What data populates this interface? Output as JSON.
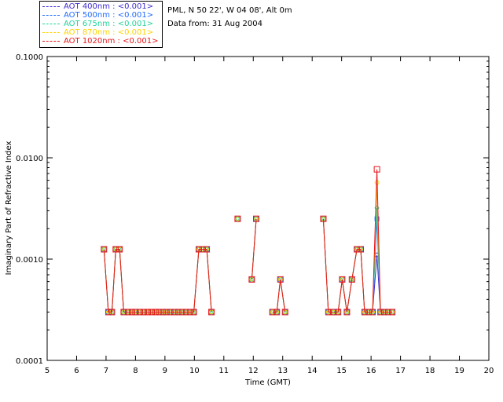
{
  "header": {
    "location": "PML, N 50 22', W 04 08', Alt 0m",
    "data_from": "Data from: 31 Aug 2004"
  },
  "legend": [
    {
      "label": "AOT  400nm : <0.001>",
      "color": "#3b2bd0"
    },
    {
      "label": "AOT  500nm : <0.001>",
      "color": "#1f6bff"
    },
    {
      "label": "AOT  675nm : <0.001>",
      "color": "#21d39a"
    },
    {
      "label": "AOT  870nm : <0.001>",
      "color": "#ffd400"
    },
    {
      "label": "AOT 1020nm : <0.001>",
      "color": "#e8161b"
    }
  ],
  "chart_data": {
    "type": "line",
    "title": "",
    "xlabel": "Time (GMT)",
    "ylabel": "Imaginary Part of Refractive Index",
    "xlim": [
      5,
      20
    ],
    "ylim": [
      0.0001,
      0.1
    ],
    "yscale": "log",
    "xticks": [
      "5",
      "6",
      "7",
      "8",
      "9",
      "10",
      "11",
      "12",
      "13",
      "14",
      "15",
      "16",
      "17",
      "18",
      "19",
      "20"
    ],
    "yticks": [
      "0.0001",
      "0.0010",
      "0.0100",
      "0.1000"
    ],
    "grid": false,
    "legend_position": "top-left-outside",
    "x": [
      6.93,
      7.08,
      7.2,
      7.33,
      7.46,
      7.6,
      7.75,
      7.88,
      8.0,
      8.15,
      8.28,
      8.42,
      8.55,
      8.68,
      8.8,
      8.93,
      9.05,
      9.18,
      9.32,
      9.45,
      9.58,
      9.72,
      9.85,
      9.98,
      10.15,
      10.28,
      10.42,
      10.58,
      11.47,
      11.95,
      12.1,
      12.65,
      12.8,
      12.92,
      13.08,
      14.38,
      14.55,
      14.72,
      14.88,
      15.02,
      15.18,
      15.35,
      15.52,
      15.65,
      15.78,
      15.92,
      16.05,
      16.2,
      16.32,
      16.45,
      16.58,
      16.72
    ],
    "segments": [
      [
        0,
        27
      ],
      [
        28,
        28
      ],
      [
        29,
        30
      ],
      [
        31,
        34
      ],
      [
        35,
        51
      ]
    ],
    "series": [
      {
        "name": "AOT  400nm",
        "values": [
          0.00125,
          0.0003,
          0.0003,
          0.00125,
          0.00125,
          0.0003,
          0.0003,
          0.0003,
          0.0003,
          0.0003,
          0.0003,
          0.0003,
          0.0003,
          0.0003,
          0.0003,
          0.0003,
          0.0003,
          0.0003,
          0.0003,
          0.0003,
          0.0003,
          0.0003,
          0.0003,
          0.0003,
          0.00125,
          0.00125,
          0.00125,
          0.0003,
          0.0025,
          0.00063,
          0.0025,
          0.0003,
          0.0003,
          0.00063,
          0.0003,
          0.0025,
          0.0003,
          0.0003,
          0.0003,
          0.00063,
          0.0003,
          0.00063,
          0.00125,
          0.00125,
          0.0003,
          0.0003,
          0.0003,
          0.0011,
          0.0003,
          0.0003,
          0.0003,
          0.0003
        ]
      },
      {
        "name": "AOT  500nm",
        "values": [
          0.00125,
          0.0003,
          0.0003,
          0.00125,
          0.00125,
          0.0003,
          0.0003,
          0.0003,
          0.0003,
          0.0003,
          0.0003,
          0.0003,
          0.0003,
          0.0003,
          0.0003,
          0.0003,
          0.0003,
          0.0003,
          0.0003,
          0.0003,
          0.0003,
          0.0003,
          0.0003,
          0.0003,
          0.00125,
          0.00125,
          0.00125,
          0.0003,
          0.0025,
          0.00063,
          0.0025,
          0.0003,
          0.0003,
          0.00063,
          0.0003,
          0.0025,
          0.0003,
          0.0003,
          0.0003,
          0.00063,
          0.0003,
          0.00063,
          0.00125,
          0.00125,
          0.0003,
          0.0003,
          0.0003,
          0.0025,
          0.0003,
          0.0003,
          0.0003,
          0.0003
        ]
      },
      {
        "name": "AOT  675nm",
        "values": [
          0.00125,
          0.0003,
          0.0003,
          0.00125,
          0.00125,
          0.0003,
          0.0003,
          0.0003,
          0.0003,
          0.0003,
          0.0003,
          0.0003,
          0.0003,
          0.0003,
          0.0003,
          0.0003,
          0.0003,
          0.0003,
          0.0003,
          0.0003,
          0.0003,
          0.0003,
          0.0003,
          0.0003,
          0.00125,
          0.00125,
          0.00125,
          0.0003,
          0.0025,
          0.00063,
          0.0025,
          0.0003,
          0.0003,
          0.00063,
          0.0003,
          0.0025,
          0.0003,
          0.0003,
          0.0003,
          0.00063,
          0.0003,
          0.00063,
          0.00125,
          0.00125,
          0.0003,
          0.0003,
          0.0003,
          0.0032,
          0.0003,
          0.0003,
          0.0003,
          0.0003
        ]
      },
      {
        "name": "AOT  870nm",
        "values": [
          0.00125,
          0.0003,
          0.0003,
          0.00125,
          0.00125,
          0.0003,
          0.0003,
          0.0003,
          0.0003,
          0.0003,
          0.0003,
          0.0003,
          0.0003,
          0.0003,
          0.0003,
          0.0003,
          0.0003,
          0.0003,
          0.0003,
          0.0003,
          0.0003,
          0.0003,
          0.0003,
          0.0003,
          0.00125,
          0.00125,
          0.00125,
          0.0003,
          0.0025,
          0.00063,
          0.0025,
          0.0003,
          0.0003,
          0.00063,
          0.0003,
          0.0025,
          0.0003,
          0.0003,
          0.0003,
          0.00063,
          0.0003,
          0.00063,
          0.00125,
          0.00125,
          0.0003,
          0.0003,
          0.0003,
          0.0057,
          0.0003,
          0.0003,
          0.0003,
          0.0003
        ]
      },
      {
        "name": "AOT 1020nm",
        "values": [
          0.00125,
          0.0003,
          0.0003,
          0.00125,
          0.00125,
          0.0003,
          0.0003,
          0.0003,
          0.0003,
          0.0003,
          0.0003,
          0.0003,
          0.0003,
          0.0003,
          0.0003,
          0.0003,
          0.0003,
          0.0003,
          0.0003,
          0.0003,
          0.0003,
          0.0003,
          0.0003,
          0.0003,
          0.00125,
          0.00125,
          0.00125,
          0.0003,
          0.0025,
          0.00063,
          0.0025,
          0.0003,
          0.0003,
          0.00063,
          0.0003,
          0.0025,
          0.0003,
          0.0003,
          0.0003,
          0.00063,
          0.0003,
          0.00063,
          0.00125,
          0.00125,
          0.0003,
          0.0003,
          0.0003,
          0.0077,
          0.0003,
          0.0003,
          0.0003,
          0.0003
        ]
      }
    ]
  }
}
